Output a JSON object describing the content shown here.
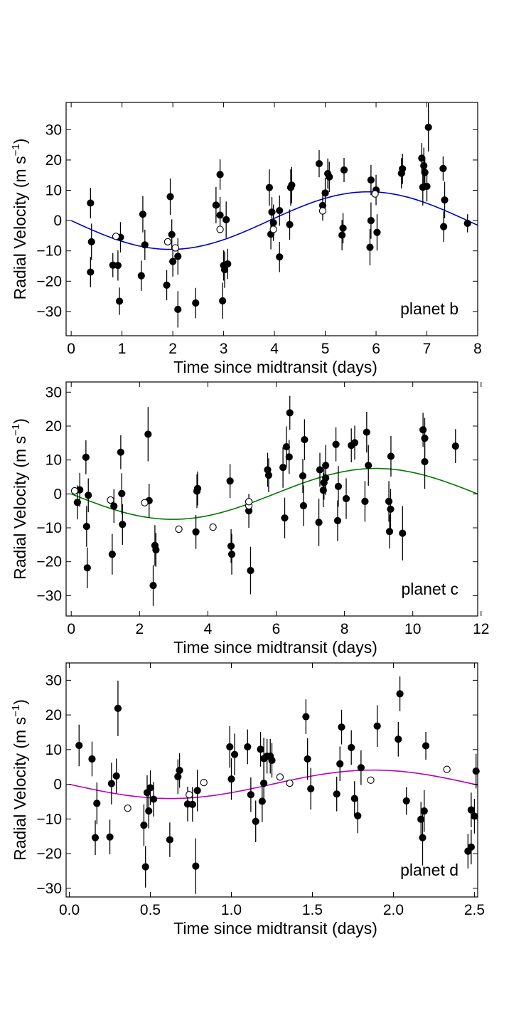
{
  "chart_data": [
    {
      "type": "scatter",
      "title": "",
      "annotation": "planet b",
      "xlabel": "Time since midtransit (days)",
      "ylabel_main": "Radial Velocity (m s",
      "ylabel_exp": "−1",
      "ylabel_close": ")",
      "xlim": [
        -0.1,
        8.0
      ],
      "ylim": [
        -38,
        39
      ],
      "xticks": [
        0,
        1,
        2,
        3,
        4,
        5,
        6,
        7,
        8
      ],
      "xtick_labels": [
        "0",
        "1",
        "2",
        "3",
        "4",
        "5",
        "6",
        "7",
        "8"
      ],
      "yticks": [
        -30,
        -20,
        -10,
        0,
        10,
        20,
        30
      ],
      "ytick_labels": [
        "−30",
        "−20",
        "−10",
        "0",
        "10",
        "20",
        "30"
      ],
      "model": {
        "amplitude": 9.5,
        "period": 7.8,
        "color": "#0000cc"
      },
      "filled": [
        [
          0.38,
          5.8,
          5
        ],
        [
          0.4,
          -7,
          6
        ],
        [
          0.38,
          -17,
          5
        ],
        [
          0.82,
          -14.7,
          4
        ],
        [
          0.92,
          -14.8,
          5
        ],
        [
          0.97,
          -5.5,
          5
        ],
        [
          0.95,
          -26.6,
          4.5
        ],
        [
          1.38,
          -18.2,
          5
        ],
        [
          1.41,
          2.1,
          6
        ],
        [
          1.45,
          -8,
          5
        ],
        [
          1.88,
          -21.3,
          5
        ],
        [
          1.95,
          7.9,
          6
        ],
        [
          1.98,
          -4.6,
          5
        ],
        [
          2.0,
          -13.5,
          5
        ],
        [
          2.1,
          -29.3,
          6
        ],
        [
          2.1,
          -11.8,
          6
        ],
        [
          2.45,
          -27.2,
          5
        ],
        [
          2.85,
          5.1,
          6
        ],
        [
          2.93,
          15.2,
          5
        ],
        [
          2.93,
          1.8,
          6
        ],
        [
          2.98,
          -26.5,
          6
        ],
        [
          3.0,
          -14.8,
          5
        ],
        [
          3.02,
          -16.2,
          6
        ],
        [
          3.05,
          0.3,
          6
        ],
        [
          3.08,
          -14.3,
          5
        ],
        [
          3.9,
          10.9,
          6
        ],
        [
          3.93,
          -4.5,
          5
        ],
        [
          3.95,
          2.8,
          5
        ],
        [
          3.98,
          -0.7,
          6
        ],
        [
          4.1,
          -12,
          5
        ],
        [
          4.1,
          3.3,
          5
        ],
        [
          4.3,
          -1.3,
          5
        ],
        [
          4.32,
          10.9,
          6
        ],
        [
          4.34,
          11.7,
          6
        ],
        [
          4.88,
          18.8,
          4.5
        ],
        [
          4.95,
          5.0,
          5
        ],
        [
          5.0,
          9.1,
          5
        ],
        [
          5.05,
          15.5,
          5
        ],
        [
          5.08,
          14.4,
          5
        ],
        [
          5.33,
          -4.8,
          5
        ],
        [
          5.35,
          -2.5,
          5
        ],
        [
          5.37,
          16.7,
          4
        ],
        [
          5.88,
          -8.8,
          6
        ],
        [
          5.9,
          0.0,
          6
        ],
        [
          5.9,
          13.4,
          5
        ],
        [
          6.0,
          10.1,
          5
        ],
        [
          6.02,
          -3.9,
          6
        ],
        [
          6.5,
          15.6,
          5
        ],
        [
          6.52,
          17.1,
          5
        ],
        [
          6.9,
          20.6,
          5
        ],
        [
          6.92,
          11.0,
          6
        ],
        [
          6.94,
          18.1,
          6
        ],
        [
          6.96,
          15.9,
          5
        ],
        [
          7.0,
          11.3,
          5
        ],
        [
          7.03,
          30.8,
          8
        ],
        [
          7.32,
          17.2,
          4
        ],
        [
          7.33,
          -2.0,
          5
        ],
        [
          7.35,
          6.8,
          6
        ],
        [
          7.8,
          -0.9,
          3
        ]
      ],
      "open": [
        [
          0.88,
          -5.2
        ],
        [
          1.9,
          -7.0
        ],
        [
          2.05,
          -9.0
        ],
        [
          2.93,
          -2.9
        ],
        [
          3.98,
          -2.9
        ],
        [
          4.95,
          3.2
        ],
        [
          5.98,
          8.8
        ]
      ]
    },
    {
      "type": "scatter",
      "title": "",
      "annotation": "planet c",
      "xlabel": "Time since midtransit (days)",
      "ylabel_main": "Radial Velocity (m s",
      "ylabel_exp": "−1",
      "ylabel_close": ")",
      "xlim": [
        -0.15,
        11.9
      ],
      "ylim": [
        -36,
        33
      ],
      "xticks": [
        0,
        2,
        4,
        6,
        8,
        10,
        12
      ],
      "xtick_labels": [
        "0",
        "2",
        "4",
        "6",
        "8",
        "10",
        "12"
      ],
      "yticks": [
        -30,
        -20,
        -10,
        0,
        10,
        20,
        30
      ],
      "ytick_labels": [
        "−30",
        "−20",
        "−10",
        "0",
        "10",
        "20",
        "30"
      ],
      "model": {
        "amplitude": 7.5,
        "period": 11.9,
        "color": "#007700"
      },
      "filled": [
        [
          0.18,
          -2.5,
          5
        ],
        [
          0.25,
          1.2,
          5
        ],
        [
          0.43,
          10.8,
          5
        ],
        [
          0.45,
          -9.6,
          6
        ],
        [
          0.47,
          -21.8,
          6
        ],
        [
          0.5,
          -0.4,
          5
        ],
        [
          1.2,
          -17.8,
          6
        ],
        [
          1.25,
          -3.6,
          5
        ],
        [
          1.45,
          12.3,
          5
        ],
        [
          1.48,
          0.1,
          6
        ],
        [
          1.5,
          -9,
          6
        ],
        [
          2.25,
          17.6,
          8
        ],
        [
          2.28,
          -2,
          5
        ],
        [
          2.4,
          -27,
          6
        ],
        [
          2.45,
          -15.2,
          6
        ],
        [
          2.48,
          -16.5,
          5
        ],
        [
          3.65,
          -11.2,
          5
        ],
        [
          3.68,
          0.8,
          5
        ],
        [
          3.7,
          1.6,
          5
        ],
        [
          4.65,
          3.8,
          5
        ],
        [
          4.68,
          -15.4,
          5
        ],
        [
          4.7,
          -17.8,
          6
        ],
        [
          5.2,
          -5,
          5
        ],
        [
          5.25,
          -22.6,
          7
        ],
        [
          5.75,
          7.1,
          5
        ],
        [
          5.78,
          5.5,
          5
        ],
        [
          6.2,
          7.8,
          6
        ],
        [
          6.25,
          -7.1,
          6
        ],
        [
          6.3,
          13.9,
          6
        ],
        [
          6.38,
          10.9,
          5
        ],
        [
          6.4,
          23.9,
          5
        ],
        [
          6.78,
          5.3,
          5
        ],
        [
          6.8,
          -3.5,
          6
        ],
        [
          6.83,
          16,
          6
        ],
        [
          7.25,
          -8.4,
          7
        ],
        [
          7.28,
          7.1,
          5
        ],
        [
          7.38,
          1.1,
          5
        ],
        [
          7.4,
          3.3,
          5
        ],
        [
          7.45,
          8.4,
          6
        ],
        [
          7.45,
          4.7,
          5
        ],
        [
          7.75,
          14.6,
          5
        ],
        [
          7.8,
          -7.9,
          6
        ],
        [
          7.82,
          2.2,
          6
        ],
        [
          8.05,
          -1.4,
          6
        ],
        [
          8.2,
          14.3,
          5
        ],
        [
          8.3,
          15.1,
          5
        ],
        [
          8.6,
          -2.2,
          6
        ],
        [
          8.65,
          18.2,
          6
        ],
        [
          8.7,
          8.4,
          6
        ],
        [
          9.3,
          -2.2,
          6
        ],
        [
          9.32,
          -11.1,
          5
        ],
        [
          9.35,
          -4.5,
          6
        ],
        [
          9.36,
          11.1,
          6
        ],
        [
          9.7,
          -11.6,
          8
        ],
        [
          10.3,
          18.9,
          5
        ],
        [
          10.35,
          16.4,
          6
        ],
        [
          10.35,
          9.5,
          8
        ],
        [
          11.25,
          14.1,
          5
        ]
      ],
      "open": [
        [
          0.1,
          0.9
        ],
        [
          1.15,
          -1.8
        ],
        [
          2.15,
          -2.6
        ],
        [
          3.15,
          -10.4
        ],
        [
          4.15,
          -9.8
        ],
        [
          5.2,
          -3.5
        ],
        [
          5.2,
          -2.3
        ]
      ]
    },
    {
      "type": "scatter",
      "title": "",
      "annotation": "planet d",
      "xlabel": "Time since midtransit (days)",
      "ylabel_main": "Radial Velocity (m s",
      "ylabel_exp": "−1",
      "ylabel_close": ")",
      "xlim": [
        -0.02,
        2.52
      ],
      "ylim": [
        -32.5,
        35
      ],
      "xticks": [
        0.0,
        0.5,
        1.0,
        1.5,
        2.0,
        2.5
      ],
      "xtick_labels": [
        "0.0",
        "0.5",
        "1.0",
        "1.5",
        "2.0",
        "2.5"
      ],
      "yticks": [
        -30,
        -20,
        -10,
        0,
        10,
        20,
        30
      ],
      "ytick_labels": [
        "−30",
        "−20",
        "−10",
        "0",
        "10",
        "20",
        "30"
      ],
      "model": {
        "amplitude": 4.1,
        "period": 2.5,
        "color": "#bb00bb"
      },
      "filled": [
        [
          0.06,
          11.2,
          6
        ],
        [
          0.14,
          7.3,
          5
        ],
        [
          0.16,
          -15.4,
          5
        ],
        [
          0.17,
          -5.5,
          6
        ],
        [
          0.25,
          -15.2,
          5
        ],
        [
          0.26,
          0.2,
          6
        ],
        [
          0.29,
          2.4,
          5
        ],
        [
          0.3,
          21.9,
          8
        ],
        [
          0.46,
          -11.8,
          6
        ],
        [
          0.47,
          -23.8,
          6
        ],
        [
          0.48,
          -2.4,
          5
        ],
        [
          0.49,
          -7.7,
          5
        ],
        [
          0.5,
          -1,
          5
        ],
        [
          0.52,
          -4.3,
          5
        ],
        [
          0.62,
          -16,
          5
        ],
        [
          0.67,
          2.2,
          5
        ],
        [
          0.68,
          4,
          5
        ],
        [
          0.73,
          -5.7,
          5
        ],
        [
          0.76,
          -5.8,
          5
        ],
        [
          0.78,
          -23.6,
          8
        ],
        [
          0.79,
          -1.8,
          6
        ],
        [
          0.99,
          10.8,
          6
        ],
        [
          1.0,
          1.5,
          6
        ],
        [
          1.02,
          8.6,
          6
        ],
        [
          1.1,
          10.8,
          5
        ],
        [
          1.12,
          -3,
          5
        ],
        [
          1.15,
          -10.7,
          6
        ],
        [
          1.18,
          10.1,
          5
        ],
        [
          1.19,
          -4.9,
          6
        ],
        [
          1.2,
          0.3,
          5
        ],
        [
          1.2,
          7.4,
          6
        ],
        [
          1.22,
          8.1,
          5
        ],
        [
          1.24,
          8.1,
          5
        ],
        [
          1.25,
          6.9,
          5
        ],
        [
          1.46,
          19.5,
          5
        ],
        [
          1.47,
          7.3,
          6
        ],
        [
          1.49,
          -1.3,
          6
        ],
        [
          1.65,
          -2.8,
          5
        ],
        [
          1.67,
          5.9,
          5
        ],
        [
          1.68,
          16.5,
          5
        ],
        [
          1.74,
          10.6,
          5
        ],
        [
          1.76,
          -4.1,
          5
        ],
        [
          1.78,
          -9.1,
          5
        ],
        [
          1.8,
          4.8,
          5
        ],
        [
          1.9,
          16.8,
          6
        ],
        [
          2.03,
          13,
          5
        ],
        [
          2.04,
          26.1,
          5
        ],
        [
          2.08,
          -4.8,
          4
        ],
        [
          2.17,
          -10.1,
          5
        ],
        [
          2.18,
          -15.4,
          8
        ],
        [
          2.19,
          -7.7,
          6
        ],
        [
          2.2,
          11.1,
          4
        ],
        [
          2.46,
          -19.3,
          5
        ],
        [
          2.48,
          -18.1,
          5
        ],
        [
          2.48,
          -7.4,
          5
        ],
        [
          2.5,
          -9.2,
          5
        ],
        [
          2.51,
          3.8,
          5
        ]
      ],
      "open": [
        [
          0.36,
          -6.9
        ],
        [
          0.74,
          -3
        ],
        [
          0.83,
          0.5
        ],
        [
          1.3,
          2.1
        ],
        [
          1.36,
          0.3
        ],
        [
          1.86,
          1.2
        ],
        [
          2.33,
          4.3
        ]
      ]
    }
  ]
}
